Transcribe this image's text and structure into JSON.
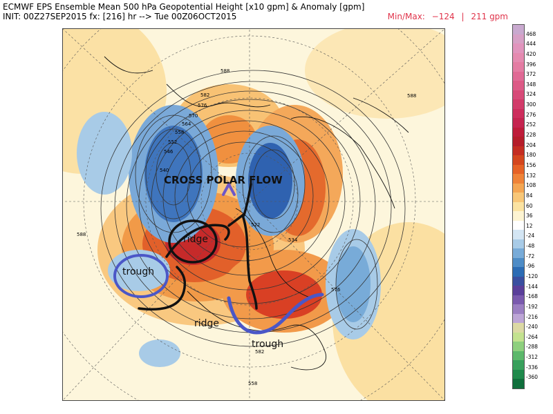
{
  "header": {
    "title": "ECMWF EPS Ensemble Mean 500 hPa Geopotential Height [x10 gpm] & Anomaly [gpm]",
    "init": "INIT: 00Z27SEP2015 fx: [216] hr --> Tue 00Z06OCT2015",
    "minmax_label": "Min/Max:",
    "min": "−124",
    "sep": "|",
    "max": "211 gpm"
  },
  "map": {
    "annotations": {
      "cross_polar": "CROSS POLAR FLOW",
      "ridge_top": "ridge",
      "trough_left": "trough",
      "ridge_bottom": "ridge",
      "trough_bottom": "trough"
    },
    "contour_labels": [
      "588",
      "582",
      "576",
      "570",
      "564",
      "558",
      "552",
      "546",
      "540",
      "522",
      "534",
      "588",
      "576",
      "588",
      "582",
      "558"
    ]
  },
  "colorbar": {
    "labels": [
      "468",
      "444",
      "420",
      "396",
      "372",
      "348",
      "324",
      "300",
      "276",
      "252",
      "228",
      "204",
      "180",
      "156",
      "132",
      "108",
      "84",
      "60",
      "36",
      "12",
      "-24",
      "-48",
      "-72",
      "-96",
      "-120",
      "-144",
      "-168",
      "-192",
      "-216",
      "-240",
      "-264",
      "-288",
      "-312",
      "-336",
      "-360"
    ],
    "colors": [
      "#c9a9cf",
      "#d7a0c6",
      "#e194bd",
      "#e58ab0",
      "#e47ca3",
      "#e06a95",
      "#dc5a86",
      "#d74a78",
      "#d23b6a",
      "#cd2d5d",
      "#c52450",
      "#be1c3a",
      "#b51d2a",
      "#c42d22",
      "#d4461e",
      "#e66226",
      "#ef8338",
      "#f4a653",
      "#f8c778",
      "#fbe3a2",
      "#fdf4d2",
      "#ffffff",
      "#d4e6f4",
      "#a8cbe7",
      "#78abd8",
      "#4e8cc6",
      "#2c6cb4",
      "#3a4fa0",
      "#5a3f9a",
      "#7a5aae",
      "#9b7fc2",
      "#bda6d6",
      "#dcd9a4",
      "#c3e28f",
      "#8ed07e",
      "#5cb86b",
      "#38a05c",
      "#1f8a4c",
      "#106f3c"
    ]
  }
}
